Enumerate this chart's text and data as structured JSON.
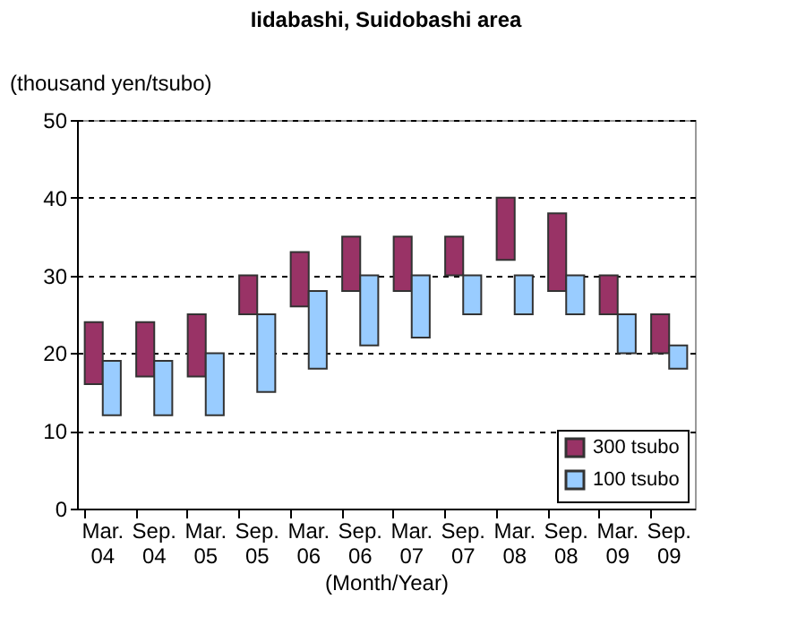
{
  "chart_data": {
    "type": "bar",
    "title": "Iidabashi, Suidobashi area",
    "xlabel": "(Month/Year)",
    "ylabel": "(thousand yen/tsubo)",
    "categories": [
      "Mar. 04",
      "Sep. 04",
      "Mar. 05",
      "Sep. 05",
      "Mar. 06",
      "Sep. 06",
      "Mar. 07",
      "Sep. 07",
      "Mar. 08",
      "Sep. 08",
      "Mar. 09",
      "Sep. 09"
    ],
    "series": [
      {
        "name": "300 tsubo",
        "color": "#993366",
        "base": [
          16,
          17,
          17,
          25,
          26,
          28,
          28,
          30,
          32,
          28,
          25,
          20
        ],
        "values": [
          8,
          7,
          8,
          5,
          7,
          7,
          7,
          5,
          8,
          10,
          5,
          5
        ]
      },
      {
        "name": "100 tsubo",
        "color": "#99ccff",
        "base": [
          12,
          12,
          12,
          15,
          18,
          21,
          22,
          25,
          25,
          25,
          20,
          18
        ],
        "values": [
          7,
          7,
          8,
          10,
          10,
          9,
          8,
          5,
          5,
          5,
          5,
          3
        ]
      }
    ],
    "ylim": [
      0,
      50
    ],
    "yticks": [
      0,
      10,
      20,
      30,
      40,
      50
    ],
    "grid": "y",
    "legend": "bottom right"
  }
}
